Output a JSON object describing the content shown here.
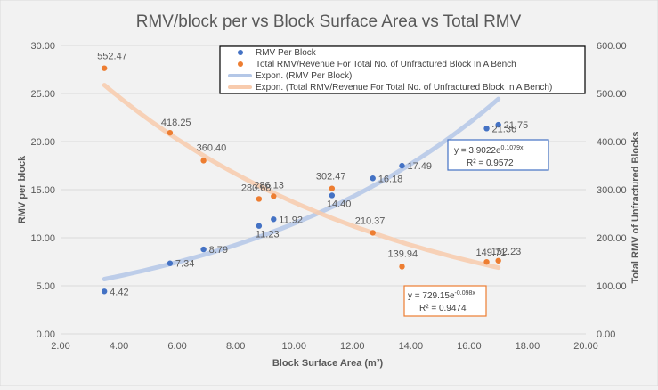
{
  "chart_data": {
    "type": "scatter",
    "title": "RMV/block  per  vs Block Surface Area vs Total  RMV",
    "xlabel": "Block Surface Area (m²)",
    "ylabel": "RMV per block",
    "y2label": "Total RMV of Unfractured Blocks",
    "xlim": [
      2,
      20
    ],
    "ylim": [
      0,
      30
    ],
    "y2lim": [
      0,
      600
    ],
    "x_ticks": [
      "2.00",
      "4.00",
      "6.00",
      "8.00",
      "10.00",
      "12.00",
      "14.00",
      "16.00",
      "18.00",
      "20.00"
    ],
    "y_ticks": [
      "0.00",
      "5.00",
      "10.00",
      "15.00",
      "20.00",
      "25.00",
      "30.00"
    ],
    "y2_ticks": [
      "0.00",
      "100.00",
      "200.00",
      "300.00",
      "400.00",
      "500.00",
      "600.00"
    ],
    "grid": true,
    "legend_position": "top-right",
    "series": [
      {
        "name": "RMV Per Block",
        "axis": "left",
        "color": "#4472c4",
        "x": [
          3.5,
          5.75,
          6.9,
          8.8,
          9.3,
          11.3,
          12.7,
          13.7,
          16.6,
          17.0
        ],
        "y": [
          4.42,
          7.34,
          8.79,
          11.23,
          11.92,
          14.4,
          16.18,
          17.49,
          21.36,
          21.75
        ],
        "labels": [
          "4.42",
          "7.34",
          "8.79",
          "11.23",
          "11.92",
          "14.40",
          "16.18",
          "17.49",
          "21.36",
          "21.75"
        ]
      },
      {
        "name": "Total RMV/Revenue For Total No. of Unfractured Block In A  Bench",
        "axis": "right",
        "color": "#ed7d31",
        "x": [
          3.5,
          5.75,
          6.9,
          8.8,
          9.3,
          11.3,
          12.7,
          13.7,
          16.6,
          17.0
        ],
        "y": [
          552.47,
          418.25,
          360.4,
          280.68,
          286.13,
          302.47,
          210.37,
          139.94,
          149.71,
          152.23
        ],
        "labels": [
          "552.47",
          "418.25",
          "360.40",
          "280.68",
          "286.13",
          "302.47",
          "210.37",
          "139.94",
          "149.71",
          "152.23"
        ]
      }
    ],
    "trendlines": [
      {
        "name": "Expon. (RMV Per Block)",
        "axis": "left",
        "color": "#b4c7e7",
        "a": 3.9022,
        "b": 0.1079,
        "x_range": [
          3.5,
          17.0
        ],
        "equation_base": "y = 3.9022e",
        "equation_exp": "0.1079x",
        "r2": "R² = 0.9572",
        "box_color": "#4472c4"
      },
      {
        "name": "Expon. (Total RMV/Revenue For Total No. of Unfractured Block In A  Bench)",
        "axis": "right",
        "color": "#f8cbad",
        "a": 729.15,
        "b": -0.098,
        "x_range": [
          3.5,
          17.0
        ],
        "equation_base": "y = 729.15e",
        "equation_exp": "-0.098x",
        "r2": "R² = 0.9474",
        "box_color": "#ed7d31"
      }
    ]
  }
}
